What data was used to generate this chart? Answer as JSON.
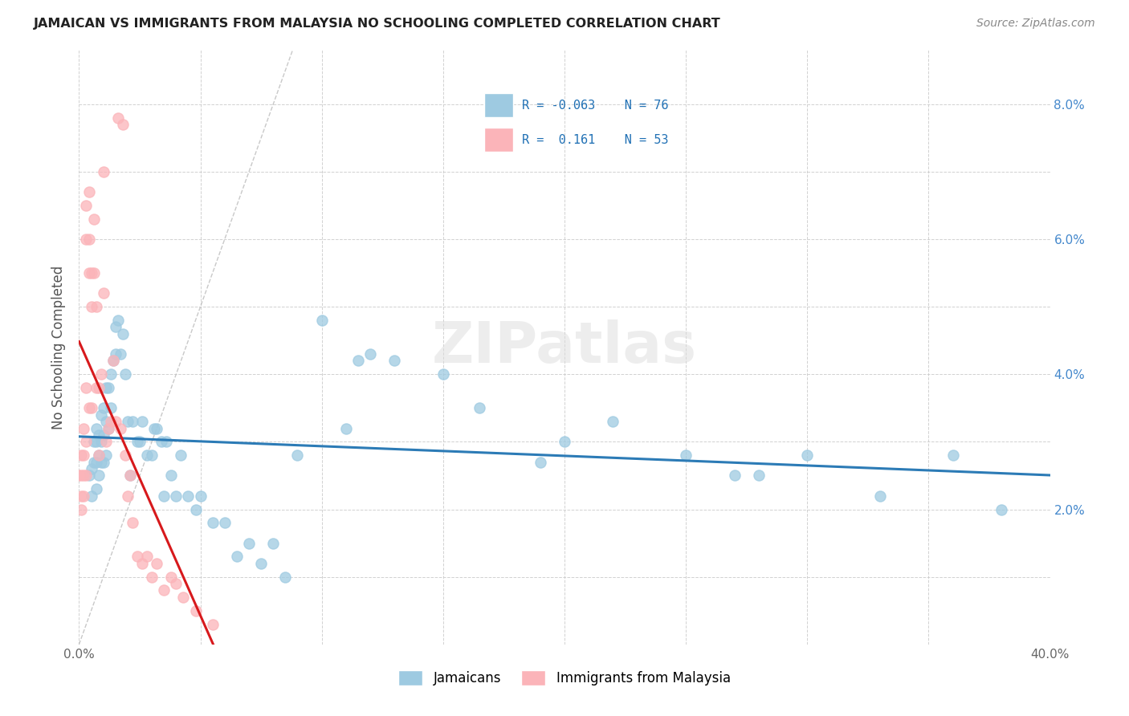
{
  "title": "JAMAICAN VS IMMIGRANTS FROM MALAYSIA NO SCHOOLING COMPLETED CORRELATION CHART",
  "source": "Source: ZipAtlas.com",
  "ylabel": "No Schooling Completed",
  "xmin": 0.0,
  "xmax": 0.4,
  "ymin": 0.0,
  "ymax": 0.088,
  "background_color": "#ffffff",
  "grid_color": "#cccccc",
  "blue_color": "#9ecae1",
  "pink_color": "#fbb4b9",
  "blue_line_color": "#2c7bb6",
  "pink_line_color": "#d7191c",
  "legend_R_blue": "-0.063",
  "legend_N_blue": "76",
  "legend_R_pink": "0.161",
  "legend_N_pink": "53",
  "legend_label_blue": "Jamaicans",
  "legend_label_pink": "Immigrants from Malaysia",
  "ytick_right_vals": [
    0.02,
    0.04,
    0.06,
    0.08
  ],
  "ytick_right_labels": [
    "2.0%",
    "4.0%",
    "6.0%",
    "8.0%"
  ],
  "blue_x": [
    0.004,
    0.005,
    0.005,
    0.006,
    0.006,
    0.007,
    0.007,
    0.007,
    0.007,
    0.008,
    0.008,
    0.008,
    0.009,
    0.009,
    0.009,
    0.01,
    0.01,
    0.01,
    0.011,
    0.011,
    0.011,
    0.012,
    0.012,
    0.013,
    0.013,
    0.014,
    0.015,
    0.015,
    0.016,
    0.017,
    0.018,
    0.019,
    0.02,
    0.021,
    0.022,
    0.024,
    0.025,
    0.026,
    0.028,
    0.03,
    0.031,
    0.032,
    0.034,
    0.035,
    0.036,
    0.038,
    0.04,
    0.042,
    0.045,
    0.048,
    0.05,
    0.055,
    0.06,
    0.065,
    0.07,
    0.075,
    0.08,
    0.085,
    0.09,
    0.1,
    0.11,
    0.115,
    0.12,
    0.13,
    0.15,
    0.165,
    0.19,
    0.2,
    0.22,
    0.25,
    0.27,
    0.28,
    0.3,
    0.33,
    0.36,
    0.38
  ],
  "blue_y": [
    0.025,
    0.026,
    0.022,
    0.03,
    0.027,
    0.032,
    0.03,
    0.027,
    0.023,
    0.031,
    0.028,
    0.025,
    0.034,
    0.03,
    0.027,
    0.035,
    0.031,
    0.027,
    0.038,
    0.033,
    0.028,
    0.038,
    0.032,
    0.04,
    0.035,
    0.042,
    0.047,
    0.043,
    0.048,
    0.043,
    0.046,
    0.04,
    0.033,
    0.025,
    0.033,
    0.03,
    0.03,
    0.033,
    0.028,
    0.028,
    0.032,
    0.032,
    0.03,
    0.022,
    0.03,
    0.025,
    0.022,
    0.028,
    0.022,
    0.02,
    0.022,
    0.018,
    0.018,
    0.013,
    0.015,
    0.012,
    0.015,
    0.01,
    0.028,
    0.048,
    0.032,
    0.042,
    0.043,
    0.042,
    0.04,
    0.035,
    0.027,
    0.03,
    0.033,
    0.028,
    0.025,
    0.025,
    0.028,
    0.022,
    0.028,
    0.02
  ],
  "pink_x": [
    0.0,
    0.001,
    0.001,
    0.001,
    0.001,
    0.002,
    0.002,
    0.002,
    0.002,
    0.003,
    0.003,
    0.003,
    0.003,
    0.003,
    0.004,
    0.004,
    0.004,
    0.004,
    0.005,
    0.005,
    0.005,
    0.006,
    0.006,
    0.007,
    0.007,
    0.008,
    0.008,
    0.009,
    0.01,
    0.01,
    0.011,
    0.012,
    0.013,
    0.014,
    0.015,
    0.016,
    0.017,
    0.018,
    0.019,
    0.02,
    0.021,
    0.022,
    0.024,
    0.026,
    0.028,
    0.03,
    0.032,
    0.035,
    0.038,
    0.04,
    0.043,
    0.048,
    0.055
  ],
  "pink_y": [
    0.025,
    0.028,
    0.025,
    0.022,
    0.02,
    0.032,
    0.028,
    0.025,
    0.022,
    0.065,
    0.06,
    0.038,
    0.03,
    0.025,
    0.067,
    0.06,
    0.055,
    0.035,
    0.055,
    0.05,
    0.035,
    0.063,
    0.055,
    0.05,
    0.038,
    0.038,
    0.028,
    0.04,
    0.07,
    0.052,
    0.03,
    0.032,
    0.033,
    0.042,
    0.033,
    0.078,
    0.032,
    0.077,
    0.028,
    0.022,
    0.025,
    0.018,
    0.013,
    0.012,
    0.013,
    0.01,
    0.012,
    0.008,
    0.01,
    0.009,
    0.007,
    0.005,
    0.003
  ]
}
